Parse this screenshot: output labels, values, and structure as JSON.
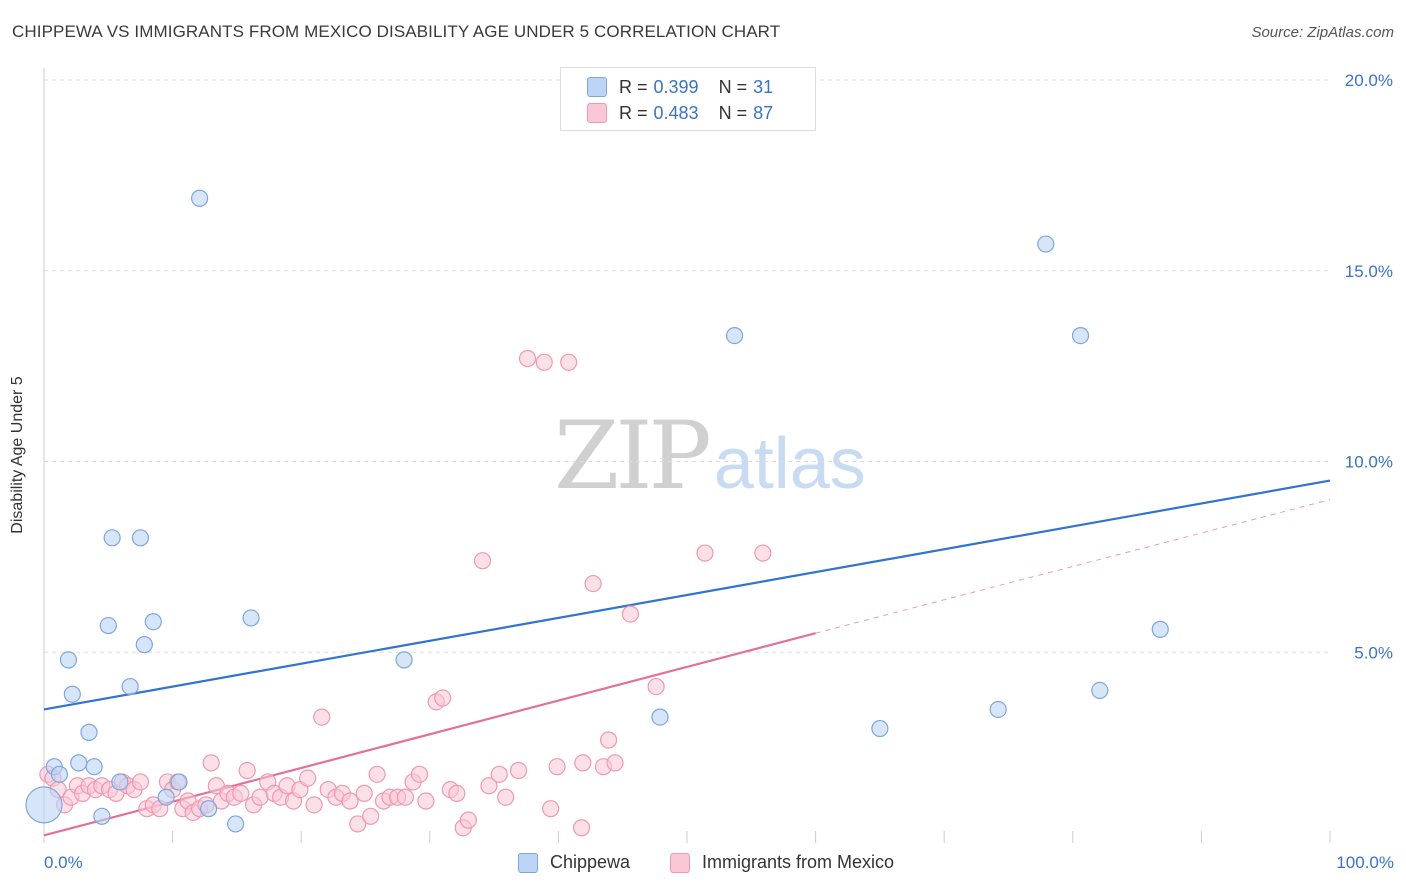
{
  "title": "CHIPPEWA VS IMMIGRANTS FROM MEXICO DISABILITY AGE UNDER 5 CORRELATION CHART",
  "source": "Source: ZipAtlas.com",
  "watermark": {
    "zip": "ZIP",
    "atlas": "atlas"
  },
  "colors": {
    "chippewa_fill": "#bcd4f5",
    "chippewa_stroke": "#7ea6dd",
    "chippewa_line": "#2f74d0",
    "mexico_fill": "#f9c7d6",
    "mexico_stroke": "#ee98b3",
    "mexico_line": "#e4709a",
    "grid": "#dddddd",
    "axis_text": "#3a73c6"
  },
  "legend": {
    "rows": [
      {
        "r_label": "R = ",
        "r_value": "0.399",
        "n_label": "N = ",
        "n_value": "31"
      },
      {
        "r_label": "R = ",
        "r_value": "0.483",
        "n_label": "N = ",
        "n_value": "87"
      }
    ]
  },
  "chart_data": {
    "type": "scatter",
    "title": "CHIPPEWA VS IMMIGRANTS FROM MEXICO DISABILITY AGE UNDER 5 CORRELATION CHART",
    "xlabel": "",
    "ylabel": "Disability Age Under 5",
    "xlim": [
      0,
      100
    ],
    "ylim": [
      0,
      20
    ],
    "x_tick_labels": [
      "0.0%",
      "100.0%"
    ],
    "y_ticks": [
      5,
      10,
      15,
      20
    ],
    "y_tick_labels": [
      "5.0%",
      "10.0%",
      "15.0%",
      "20.0%"
    ],
    "grid": true,
    "legend_position": "top-center",
    "series": [
      {
        "name": "Chippewa",
        "r": 0.399,
        "n": 31,
        "trend": {
          "x": [
            0,
            100
          ],
          "y": [
            3.5,
            9.5
          ],
          "style": "solid"
        },
        "points": [
          {
            "x": 0.0,
            "y": 1.0,
            "size": "large"
          },
          {
            "x": 0.8,
            "y": 2.0
          },
          {
            "x": 1.2,
            "y": 1.8
          },
          {
            "x": 1.9,
            "y": 4.8
          },
          {
            "x": 2.2,
            "y": 3.9
          },
          {
            "x": 2.7,
            "y": 2.1
          },
          {
            "x": 3.5,
            "y": 2.9
          },
          {
            "x": 3.9,
            "y": 2.0
          },
          {
            "x": 4.5,
            "y": 0.7
          },
          {
            "x": 5.0,
            "y": 5.7
          },
          {
            "x": 5.3,
            "y": 8.0
          },
          {
            "x": 5.9,
            "y": 1.6
          },
          {
            "x": 6.7,
            "y": 4.1
          },
          {
            "x": 7.5,
            "y": 8.0
          },
          {
            "x": 7.8,
            "y": 5.2
          },
          {
            "x": 8.5,
            "y": 5.8
          },
          {
            "x": 9.5,
            "y": 1.2
          },
          {
            "x": 10.5,
            "y": 1.6
          },
          {
            "x": 12.1,
            "y": 16.9
          },
          {
            "x": 12.8,
            "y": 0.9
          },
          {
            "x": 14.9,
            "y": 0.5
          },
          {
            "x": 16.1,
            "y": 5.9
          },
          {
            "x": 28.0,
            "y": 4.8
          },
          {
            "x": 47.9,
            "y": 3.3
          },
          {
            "x": 53.7,
            "y": 13.3
          },
          {
            "x": 65.0,
            "y": 3.0
          },
          {
            "x": 74.2,
            "y": 3.5
          },
          {
            "x": 77.9,
            "y": 15.7
          },
          {
            "x": 80.6,
            "y": 13.3
          },
          {
            "x": 82.1,
            "y": 4.0
          },
          {
            "x": 86.8,
            "y": 5.6
          }
        ]
      },
      {
        "name": "Immigrants from Mexico",
        "r": 0.483,
        "n": 87,
        "trend": {
          "x": [
            0,
            60
          ],
          "y": [
            0.2,
            5.5
          ],
          "style": "solid",
          "extension": {
            "x": [
              60,
              100
            ],
            "y": [
              5.5,
              9.0
            ],
            "style": "dashed"
          }
        },
        "points": [
          {
            "x": 0.3,
            "y": 1.8
          },
          {
            "x": 0.7,
            "y": 1.7
          },
          {
            "x": 1.1,
            "y": 1.4
          },
          {
            "x": 1.6,
            "y": 1.0
          },
          {
            "x": 2.1,
            "y": 1.2
          },
          {
            "x": 2.6,
            "y": 1.5
          },
          {
            "x": 3.0,
            "y": 1.3
          },
          {
            "x": 3.5,
            "y": 1.5
          },
          {
            "x": 4.0,
            "y": 1.4
          },
          {
            "x": 4.5,
            "y": 1.5
          },
          {
            "x": 5.1,
            "y": 1.4
          },
          {
            "x": 5.6,
            "y": 1.3
          },
          {
            "x": 6.1,
            "y": 1.6
          },
          {
            "x": 6.5,
            "y": 1.5
          },
          {
            "x": 7.0,
            "y": 1.4
          },
          {
            "x": 7.5,
            "y": 1.6
          },
          {
            "x": 8.0,
            "y": 0.9
          },
          {
            "x": 8.5,
            "y": 1.0
          },
          {
            "x": 9.0,
            "y": 0.9
          },
          {
            "x": 9.6,
            "y": 1.6
          },
          {
            "x": 10.0,
            "y": 1.4
          },
          {
            "x": 10.4,
            "y": 1.6
          },
          {
            "x": 10.8,
            "y": 0.9
          },
          {
            "x": 11.2,
            "y": 1.1
          },
          {
            "x": 11.6,
            "y": 0.8
          },
          {
            "x": 12.1,
            "y": 0.9
          },
          {
            "x": 12.6,
            "y": 1.0
          },
          {
            "x": 13.0,
            "y": 2.1
          },
          {
            "x": 13.4,
            "y": 1.5
          },
          {
            "x": 13.8,
            "y": 1.1
          },
          {
            "x": 14.3,
            "y": 1.3
          },
          {
            "x": 14.8,
            "y": 1.2
          },
          {
            "x": 15.3,
            "y": 1.3
          },
          {
            "x": 15.8,
            "y": 1.9
          },
          {
            "x": 16.3,
            "y": 1.0
          },
          {
            "x": 16.8,
            "y": 1.2
          },
          {
            "x": 17.4,
            "y": 1.6
          },
          {
            "x": 17.9,
            "y": 1.3
          },
          {
            "x": 18.4,
            "y": 1.2
          },
          {
            "x": 18.9,
            "y": 1.5
          },
          {
            "x": 19.4,
            "y": 1.1
          },
          {
            "x": 19.9,
            "y": 1.4
          },
          {
            "x": 20.5,
            "y": 1.7
          },
          {
            "x": 21.0,
            "y": 1.0
          },
          {
            "x": 21.6,
            "y": 3.3
          },
          {
            "x": 22.1,
            "y": 1.4
          },
          {
            "x": 22.7,
            "y": 1.2
          },
          {
            "x": 23.2,
            "y": 1.3
          },
          {
            "x": 23.8,
            "y": 1.1
          },
          {
            "x": 24.4,
            "y": 0.5
          },
          {
            "x": 24.9,
            "y": 1.3
          },
          {
            "x": 25.4,
            "y": 0.7
          },
          {
            "x": 25.9,
            "y": 1.8
          },
          {
            "x": 26.4,
            "y": 1.1
          },
          {
            "x": 26.9,
            "y": 1.2
          },
          {
            "x": 27.5,
            "y": 1.2
          },
          {
            "x": 28.1,
            "y": 1.2
          },
          {
            "x": 28.7,
            "y": 1.6
          },
          {
            "x": 29.2,
            "y": 1.8
          },
          {
            "x": 29.7,
            "y": 1.1
          },
          {
            "x": 30.5,
            "y": 3.7
          },
          {
            "x": 31.0,
            "y": 3.8
          },
          {
            "x": 31.6,
            "y": 1.4
          },
          {
            "x": 32.1,
            "y": 1.3
          },
          {
            "x": 32.6,
            "y": 0.4
          },
          {
            "x": 33.0,
            "y": 0.6
          },
          {
            "x": 34.1,
            "y": 7.4
          },
          {
            "x": 34.6,
            "y": 1.5
          },
          {
            "x": 35.4,
            "y": 1.8
          },
          {
            "x": 35.9,
            "y": 1.2
          },
          {
            "x": 36.9,
            "y": 1.9
          },
          {
            "x": 37.6,
            "y": 12.7
          },
          {
            "x": 38.9,
            "y": 12.6
          },
          {
            "x": 39.4,
            "y": 0.9
          },
          {
            "x": 39.9,
            "y": 2.0
          },
          {
            "x": 40.8,
            "y": 12.6
          },
          {
            "x": 41.8,
            "y": 0.4
          },
          {
            "x": 41.9,
            "y": 2.1
          },
          {
            "x": 42.7,
            "y": 6.8
          },
          {
            "x": 43.5,
            "y": 2.0
          },
          {
            "x": 43.9,
            "y": 2.7
          },
          {
            "x": 44.4,
            "y": 2.1
          },
          {
            "x": 45.6,
            "y": 6.0
          },
          {
            "x": 47.6,
            "y": 4.1
          },
          {
            "x": 51.4,
            "y": 7.6
          },
          {
            "x": 55.9,
            "y": 7.6
          }
        ]
      }
    ]
  },
  "bottom_legend": [
    {
      "label": "Chippewa"
    },
    {
      "label": "Immigrants from Mexico"
    }
  ]
}
